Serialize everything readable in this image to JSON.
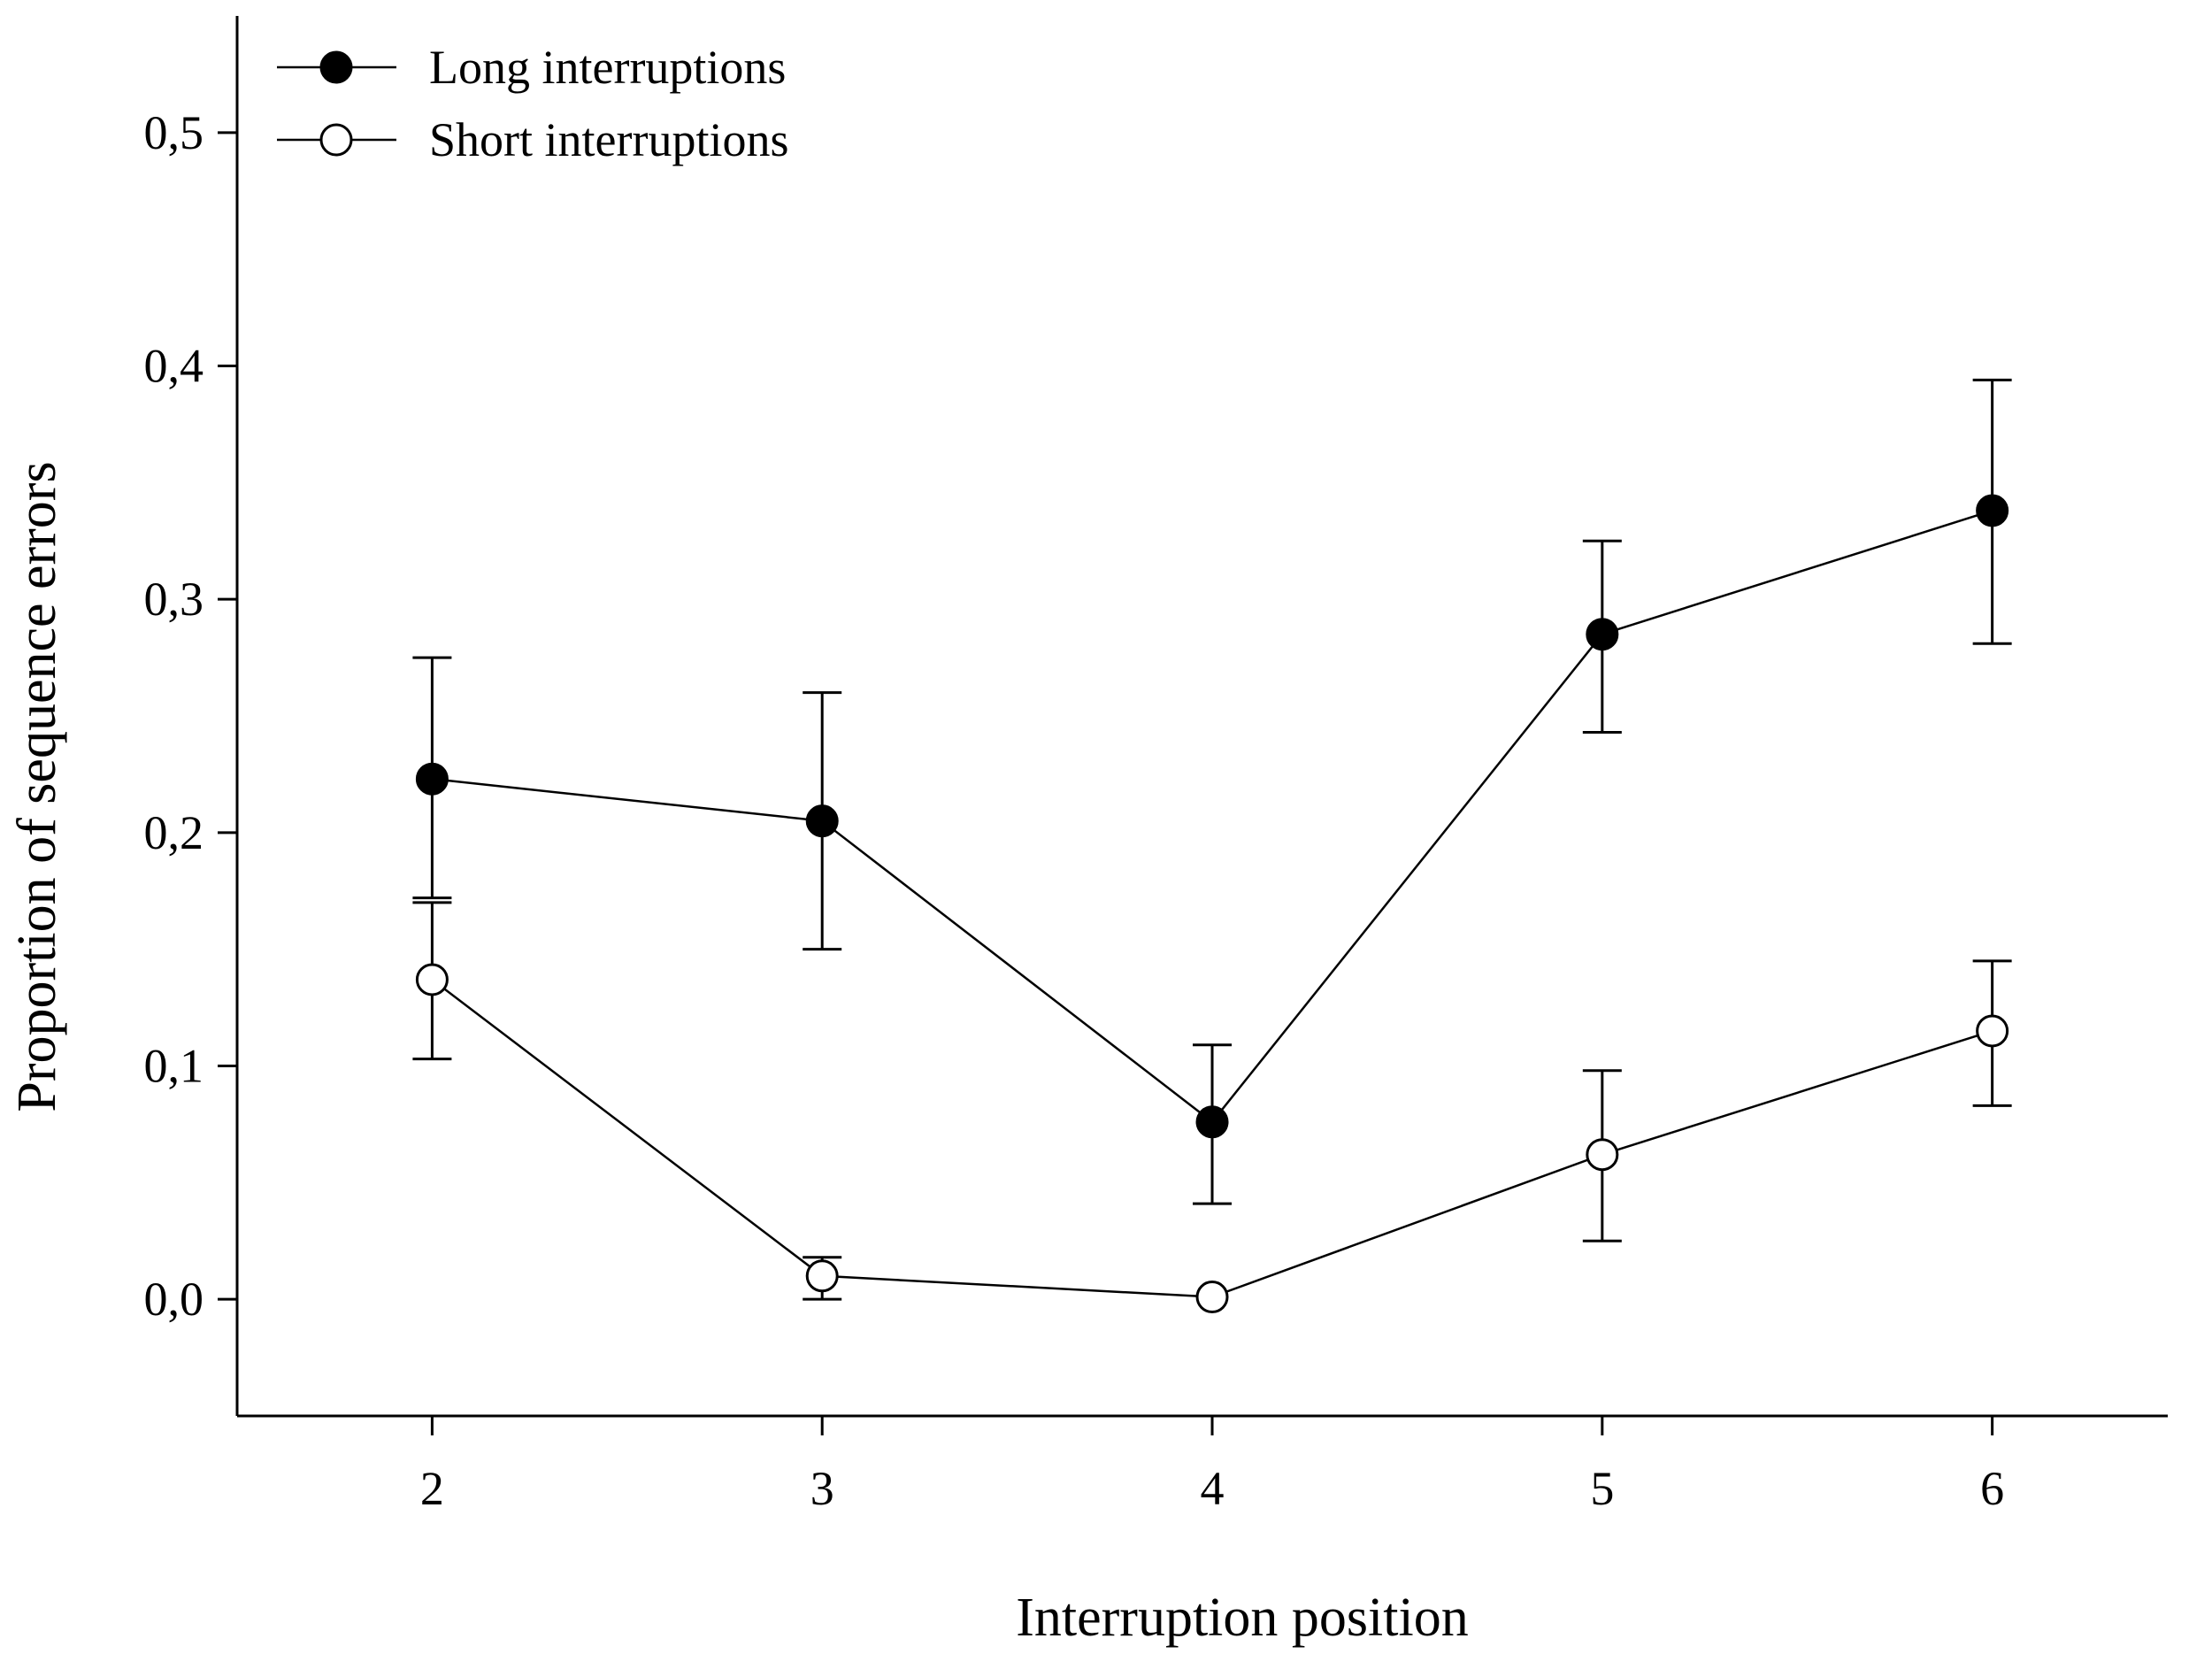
{
  "chart_data": {
    "type": "line",
    "title": "",
    "xlabel": "Interruption position",
    "ylabel": "Proportion of sequence errors",
    "x": [
      2,
      3,
      4,
      5,
      6
    ],
    "x_tick_labels": [
      "2",
      "3",
      "4",
      "5",
      "6"
    ],
    "y_ticks": [
      0.0,
      0.1,
      0.2,
      0.3,
      0.4,
      0.5
    ],
    "y_tick_labels": [
      "0,0",
      "0,1",
      "0,2",
      "0,3",
      "0,4",
      "0,5"
    ],
    "xlim": [
      1.5,
      6.45
    ],
    "ylim": [
      -0.05,
      0.55
    ],
    "grid": false,
    "legend_position": "top-left",
    "series": [
      {
        "name": "Long interruptions",
        "marker": "filled-circle",
        "color": "#000000",
        "values": [
          0.223,
          0.205,
          0.076,
          0.285,
          0.338
        ],
        "error_upper": [
          0.275,
          0.26,
          0.109,
          0.325,
          0.394
        ],
        "error_lower": [
          0.172,
          0.15,
          0.041,
          0.243,
          0.281
        ]
      },
      {
        "name": "Short interruptions",
        "marker": "open-circle",
        "color": "#000000",
        "values": [
          0.137,
          0.01,
          0.001,
          0.062,
          0.115
        ],
        "error_upper": [
          0.17,
          0.018,
          0.001,
          0.098,
          0.145
        ],
        "error_lower": [
          0.103,
          0.0,
          0.001,
          0.025,
          0.083
        ]
      }
    ]
  }
}
